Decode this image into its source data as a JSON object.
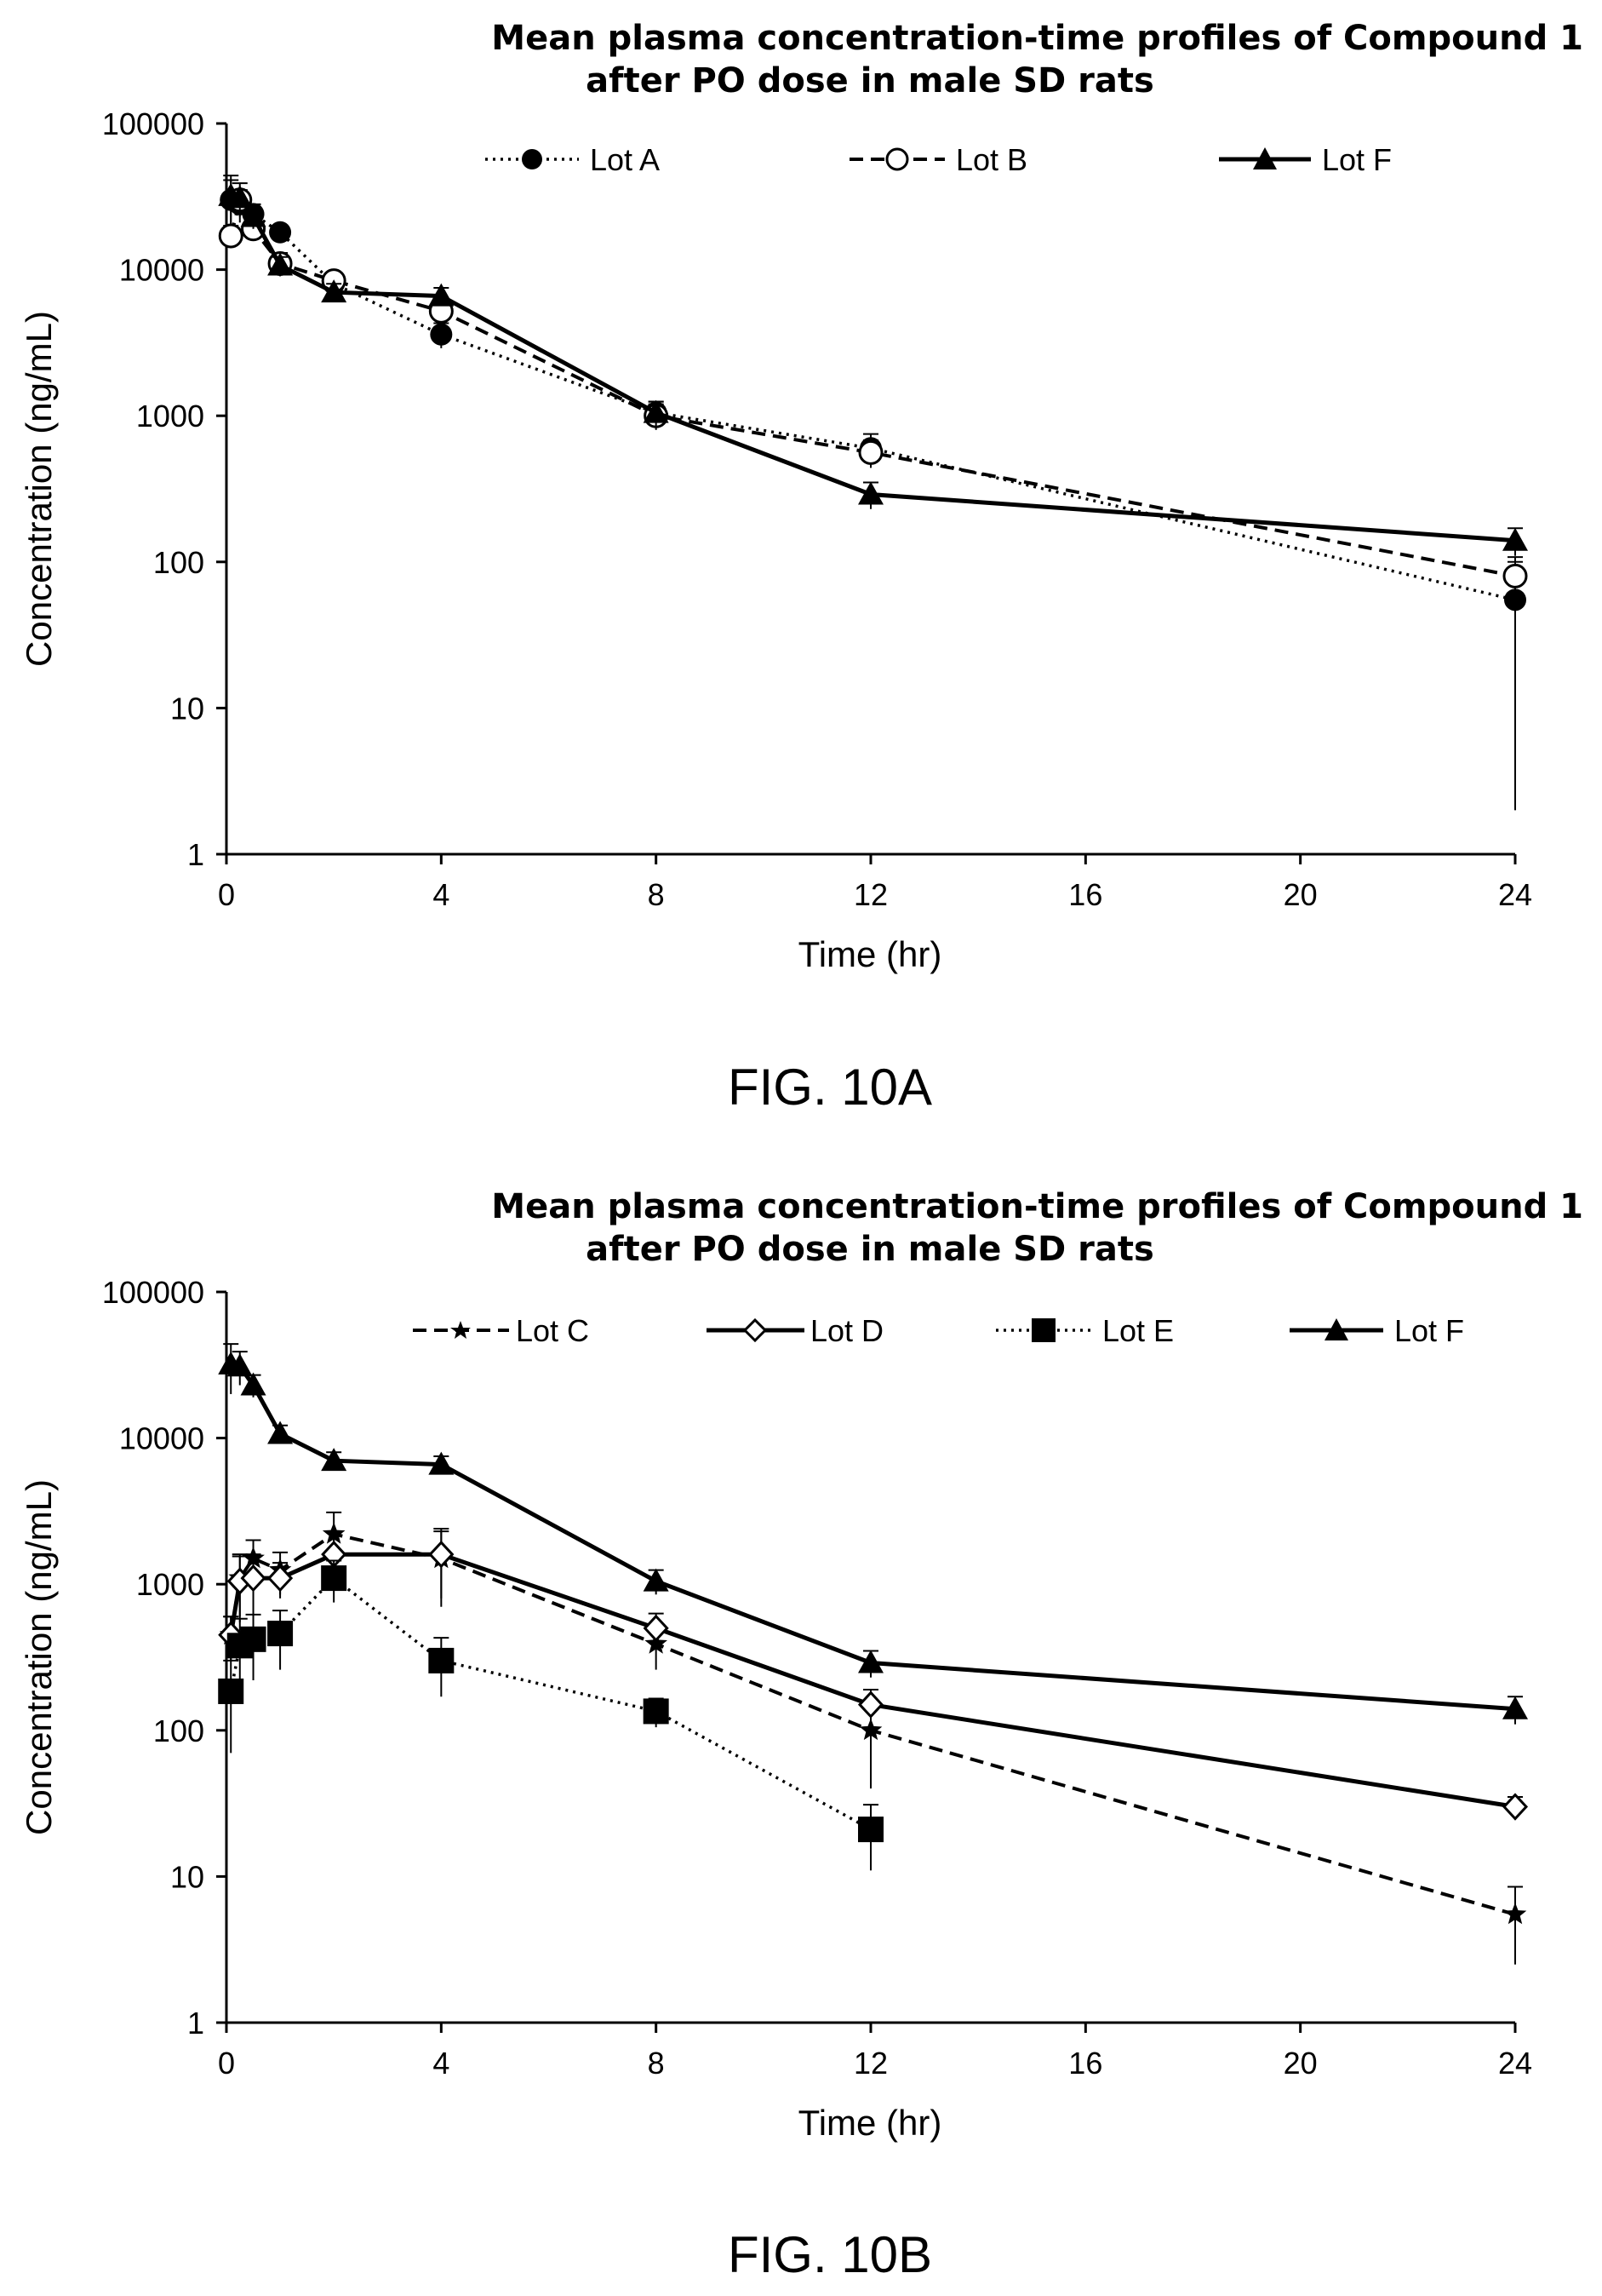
{
  "chart_data": [
    {
      "type": "line",
      "title_line1": "Mean plasma concentration-time profiles of Compound 1",
      "title_line2": "after PO dose  in male SD rats",
      "xlabel": "Time (hr)",
      "ylabel": "Concentration (ng/mL)",
      "xlim": [
        0,
        24
      ],
      "ylim": [
        1,
        100000
      ],
      "yscale": "log",
      "xticks": [
        0,
        4,
        8,
        12,
        16,
        20,
        24
      ],
      "yticks": [
        1,
        10,
        100,
        1000,
        10000,
        100000
      ],
      "xtick_labels": [
        "0",
        "4",
        "8",
        "12",
        "16",
        "20",
        "24"
      ],
      "ytick_labels": [
        "1",
        "10",
        "100",
        "1000",
        "10000",
        "100000"
      ],
      "grid": false,
      "legend_position": "top",
      "caption": "FIG. 10A",
      "series": [
        {
          "name": "Lot A",
          "line_style": "dotted",
          "marker": "filled-circle",
          "x": [
            0.083,
            0.25,
            0.5,
            1,
            2,
            4,
            8,
            12,
            24
          ],
          "y": [
            30000,
            28000,
            24000,
            18000,
            8000,
            3600,
            1050,
            600,
            55
          ],
          "err": [
            11000,
            7000,
            4000,
            2000,
            1000,
            700,
            200,
            150,
            53
          ]
        },
        {
          "name": "Lot B",
          "line_style": "dashed",
          "marker": "open-circle",
          "x": [
            0.083,
            0.25,
            0.5,
            1,
            2,
            4,
            8,
            12,
            24
          ],
          "y": [
            17000,
            30000,
            19000,
            11000,
            8400,
            5200,
            1000,
            560,
            80
          ],
          "err": [
            3000,
            5000,
            3000,
            2000,
            1200,
            900,
            200,
            120,
            20
          ]
        },
        {
          "name": "Lot F",
          "line_style": "solid",
          "marker": "filled-triangle",
          "x": [
            0.083,
            0.25,
            0.5,
            1,
            2,
            4,
            8,
            12,
            24
          ],
          "y": [
            32000,
            31000,
            23000,
            10700,
            7000,
            6600,
            1050,
            290,
            140
          ],
          "err": [
            12000,
            8000,
            4000,
            1500,
            1000,
            900,
            200,
            60,
            30
          ]
        }
      ]
    },
    {
      "type": "line",
      "title_line1": "Mean plasma concentration-time profiles of Compound 1",
      "title_line2": "after PO dose  in male SD rats",
      "xlabel": "Time (hr)",
      "ylabel": "Concentration (ng/mL)",
      "xlim": [
        0,
        24
      ],
      "ylim": [
        1,
        100000
      ],
      "yscale": "log",
      "xticks": [
        0,
        4,
        8,
        12,
        16,
        20,
        24
      ],
      "yticks": [
        1,
        10,
        100,
        1000,
        10000,
        100000
      ],
      "xtick_labels": [
        "0",
        "4",
        "8",
        "12",
        "16",
        "20",
        "24"
      ],
      "ytick_labels": [
        "1",
        "10",
        "100",
        "1000",
        "10000",
        "100000"
      ],
      "grid": false,
      "legend_position": "top",
      "caption": "FIG. 10B",
      "series": [
        {
          "name": "Lot C",
          "line_style": "dashed",
          "marker": "filled-star",
          "x": [
            0.083,
            0.25,
            0.5,
            1,
            2,
            4,
            8,
            12,
            24
          ],
          "y": [
            450,
            1100,
            1500,
            1250,
            2200,
            1500,
            390,
            100,
            5.5
          ],
          "err": [
            150,
            500,
            500,
            400,
            900,
            800,
            130,
            60,
            3
          ]
        },
        {
          "name": "Lot D",
          "line_style": "solid",
          "marker": "open-diamond",
          "x": [
            0.083,
            0.25,
            0.5,
            1,
            2,
            4,
            8,
            12,
            24
          ],
          "y": [
            450,
            1050,
            1100,
            1100,
            1600,
            1600,
            500,
            150,
            30
          ],
          "err": [
            150,
            500,
            500,
            300,
            700,
            800,
            130,
            40,
            5
          ]
        },
        {
          "name": "Lot E",
          "line_style": "dotted",
          "marker": "filled-square",
          "x": [
            0.083,
            0.25,
            0.5,
            1,
            2,
            4,
            8,
            12
          ],
          "y": [
            185,
            380,
            420,
            460,
            1100,
            300,
            135,
            21
          ],
          "err": [
            115,
            200,
            200,
            200,
            350,
            130,
            30,
            10
          ]
        },
        {
          "name": "Lot F",
          "line_style": "solid",
          "marker": "filled-triangle",
          "x": [
            0.083,
            0.25,
            0.5,
            1,
            2,
            4,
            8,
            12,
            24
          ],
          "y": [
            32000,
            31000,
            23000,
            10700,
            7000,
            6600,
            1050,
            290,
            140
          ],
          "err": [
            12000,
            8000,
            4000,
            1500,
            1000,
            900,
            200,
            60,
            30
          ]
        }
      ]
    }
  ]
}
